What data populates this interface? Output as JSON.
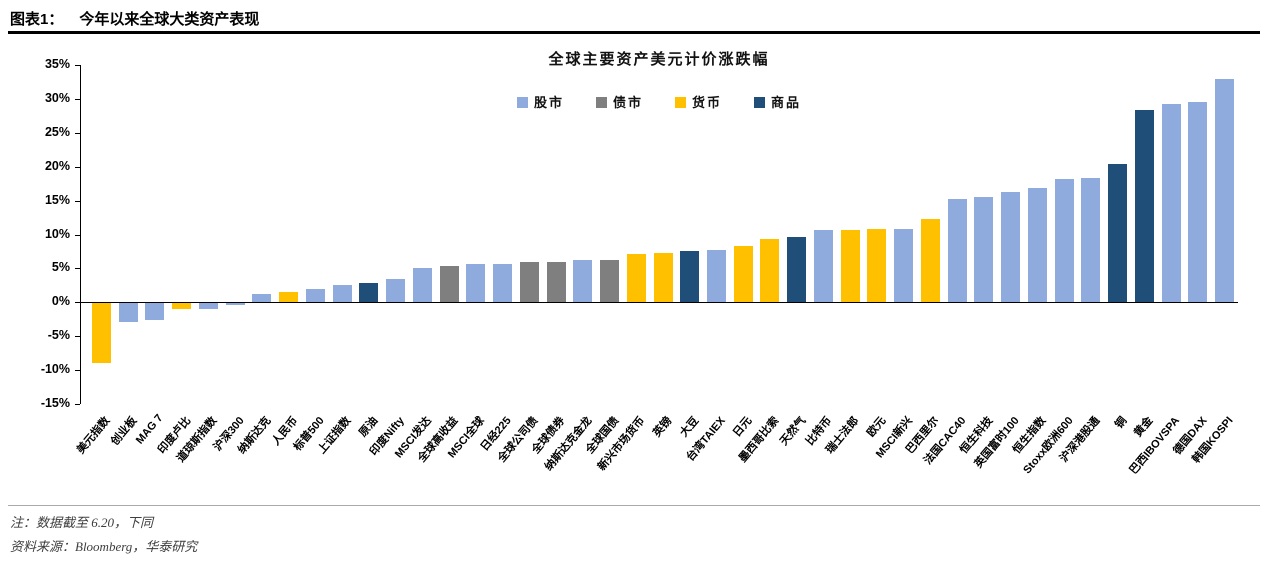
{
  "header": {
    "label": "图表1：",
    "title": "今年以来全球大类资产表现"
  },
  "notes": {
    "note1": "注：数据截至 6.20，下同",
    "note2": "资料来源：Bloomberg，华泰研究"
  },
  "chart_data": {
    "type": "bar",
    "title": "全球主要资产美元计价涨跌幅",
    "xlabel": "",
    "ylabel": "",
    "ylim": [
      -15,
      35
    ],
    "ytick_step": 5,
    "ytick_format": "percent",
    "grid": false,
    "legend_position": "top",
    "legend": [
      {
        "label": "股市",
        "color": "#8FAADC"
      },
      {
        "label": "债市",
        "color": "#7F7F7F"
      },
      {
        "label": "货币",
        "color": "#FFC000"
      },
      {
        "label": "商品",
        "color": "#1F4E79"
      }
    ],
    "bars": [
      {
        "label": "美元指数",
        "value": -8.8,
        "group": "货币"
      },
      {
        "label": "创业板",
        "value": -2.7,
        "group": "股市"
      },
      {
        "label": "MAG 7",
        "value": -2.4,
        "group": "股市"
      },
      {
        "label": "印度卢比",
        "value": -0.9,
        "group": "货币"
      },
      {
        "label": "道琼斯指数",
        "value": -0.8,
        "group": "股市"
      },
      {
        "label": "沪深300",
        "value": -0.3,
        "group": "股市"
      },
      {
        "label": "纳斯达克",
        "value": 1.2,
        "group": "股市"
      },
      {
        "label": "人民币",
        "value": 1.5,
        "group": "货币"
      },
      {
        "label": "标普500",
        "value": 2.0,
        "group": "股市"
      },
      {
        "label": "上证指数",
        "value": 2.6,
        "group": "股市"
      },
      {
        "label": "原油",
        "value": 2.8,
        "group": "商品"
      },
      {
        "label": "印度Nifty",
        "value": 3.5,
        "group": "股市"
      },
      {
        "label": "MSCI发达",
        "value": 5.1,
        "group": "股市"
      },
      {
        "label": "全球高收益",
        "value": 5.3,
        "group": "债市"
      },
      {
        "label": "MSCI全球",
        "value": 5.6,
        "group": "股市"
      },
      {
        "label": "日经225",
        "value": 5.7,
        "group": "股市"
      },
      {
        "label": "全球公司债",
        "value": 5.9,
        "group": "债市"
      },
      {
        "label": "全球债券",
        "value": 6.0,
        "group": "债市"
      },
      {
        "label": "纳斯达克金龙",
        "value": 6.3,
        "group": "股市"
      },
      {
        "label": "全球国债",
        "value": 6.3,
        "group": "债市"
      },
      {
        "label": "新兴市场货币",
        "value": 7.1,
        "group": "货币"
      },
      {
        "label": "英镑",
        "value": 7.2,
        "group": "货币"
      },
      {
        "label": "大豆",
        "value": 7.6,
        "group": "商品"
      },
      {
        "label": "台湾TAIEX",
        "value": 7.7,
        "group": "股市"
      },
      {
        "label": "日元",
        "value": 8.3,
        "group": "货币"
      },
      {
        "label": "墨西哥比索",
        "value": 9.4,
        "group": "货币"
      },
      {
        "label": "天然气",
        "value": 9.6,
        "group": "商品"
      },
      {
        "label": "比特币",
        "value": 10.6,
        "group": "股市"
      },
      {
        "label": "瑞士法郎",
        "value": 10.7,
        "group": "货币"
      },
      {
        "label": "欧元",
        "value": 10.8,
        "group": "货币"
      },
      {
        "label": "MSCI新兴",
        "value": 10.8,
        "group": "股市"
      },
      {
        "label": "巴西里尔",
        "value": 12.3,
        "group": "货币"
      },
      {
        "label": "法国CAC40",
        "value": 15.2,
        "group": "股市"
      },
      {
        "label": "恒生科技",
        "value": 15.5,
        "group": "股市"
      },
      {
        "label": "英国富时100",
        "value": 16.2,
        "group": "股市"
      },
      {
        "label": "恒生指数",
        "value": 16.9,
        "group": "股市"
      },
      {
        "label": "Stoxx欧洲600",
        "value": 18.2,
        "group": "股市"
      },
      {
        "label": "沪深港股通",
        "value": 18.3,
        "group": "股市"
      },
      {
        "label": "铜",
        "value": 20.4,
        "group": "商品"
      },
      {
        "label": "黄金",
        "value": 28.3,
        "group": "商品"
      },
      {
        "label": "巴西IBOVSPA",
        "value": 29.3,
        "group": "股市"
      },
      {
        "label": "德国DAX",
        "value": 29.6,
        "group": "股市"
      },
      {
        "label": "韩国KOSPI",
        "value": 32.9,
        "group": "股市"
      }
    ]
  }
}
